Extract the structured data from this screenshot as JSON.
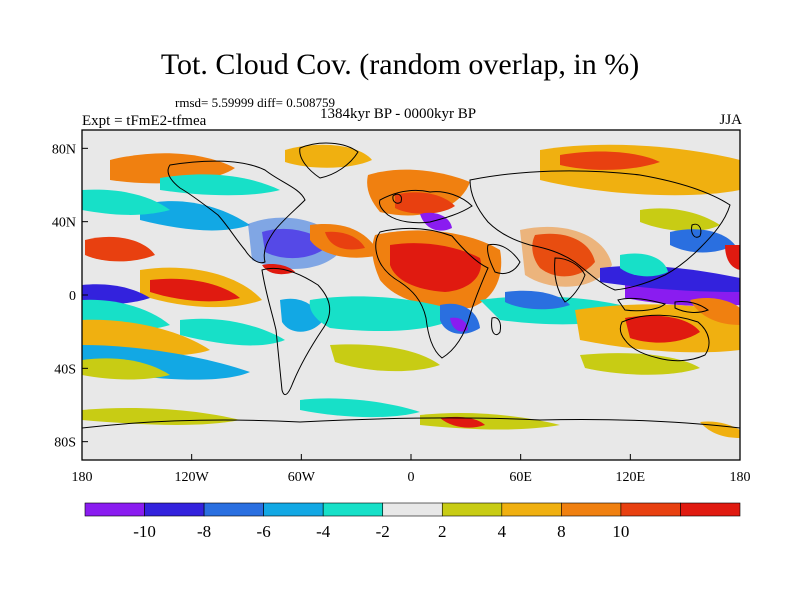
{
  "title": "Tot. Cloud Cov. (random overlap, in %)",
  "stats": "rmsd= 5.59999 diff= 0.508759",
  "experiment": "Expt = tFmE2-tfmea",
  "period": "1384kyr BP - 0000kyr BP",
  "season": "JJA",
  "lon_ticks": [
    {
      "lon": -180,
      "label": "180"
    },
    {
      "lon": -120,
      "label": "120W"
    },
    {
      "lon": -60,
      "label": "60W"
    },
    {
      "lon": 0,
      "label": "0"
    },
    {
      "lon": 60,
      "label": "60E"
    },
    {
      "lon": 120,
      "label": "120E"
    },
    {
      "lon": 180,
      "label": "180"
    }
  ],
  "lat_ticks": [
    {
      "lat": 80,
      "label": "80N"
    },
    {
      "lat": 40,
      "label": "40N"
    },
    {
      "lat": 0,
      "label": "0"
    },
    {
      "lat": -40,
      "label": "40S"
    },
    {
      "lat": -80,
      "label": "80S"
    }
  ],
  "colorbar": {
    "labels": [
      "-10",
      "-8",
      "-6",
      "-4",
      "-2",
      "2",
      "4",
      "8",
      "10"
    ],
    "colors": [
      "#8a1cf0",
      "#3322dd",
      "#2a6fe0",
      "#12a8e4",
      "#17e0c8",
      "#e8e8e8",
      "#c8cc14",
      "#f0b010",
      "#f08010",
      "#e84010",
      "#e01a10"
    ]
  },
  "colors": {
    "strong_neg": "#8a1cf0",
    "neg_blue": "#3322dd",
    "mid_blue": "#2a6fe0",
    "light_blue": "#12a8e4",
    "cyan": "#17e0c8",
    "neutral": "#e8e8e8",
    "yellow": "#c8cc14",
    "orange": "#f0b010",
    "dark_orange": "#f08010",
    "red_orange": "#e84010",
    "red": "#e01a10"
  }
}
